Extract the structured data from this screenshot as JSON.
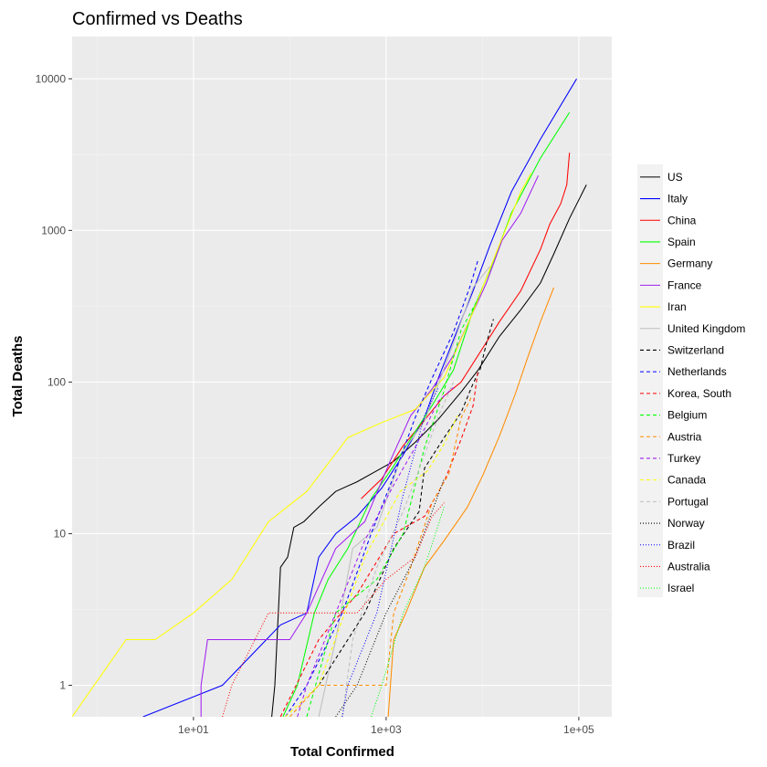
{
  "chart_data": {
    "type": "line",
    "title": "Confirmed vs Deaths",
    "xlabel": "Total Confirmed",
    "ylabel": "Total Deaths",
    "x_scale": "log10",
    "y_scale": "log10",
    "xlim": [
      0.55,
      220000
    ],
    "ylim": [
      0.62,
      19000
    ],
    "x_ticks": [
      10,
      1000,
      100000
    ],
    "x_tick_labels": [
      "1e+01",
      "1e+03",
      "1e+05"
    ],
    "y_ticks": [
      1,
      10,
      100,
      1000,
      10000
    ],
    "y_tick_labels": [
      "1",
      "10",
      "100",
      "1000",
      "10000"
    ],
    "background": "#EBEBEB",
    "grid": true,
    "legend_position": "right",
    "series": [
      {
        "name": "US",
        "color": "#000000",
        "dash": "solid",
        "points": [
          [
            65,
            0.62
          ],
          [
            70,
            1
          ],
          [
            80,
            6
          ],
          [
            95,
            7
          ],
          [
            110,
            11
          ],
          [
            140,
            12
          ],
          [
            200,
            15
          ],
          [
            300,
            19
          ],
          [
            500,
            22
          ],
          [
            800,
            26
          ],
          [
            1200,
            30
          ],
          [
            2000,
            40
          ],
          [
            3500,
            57
          ],
          [
            6000,
            86
          ],
          [
            9000,
            120
          ],
          [
            15000,
            200
          ],
          [
            25000,
            300
          ],
          [
            40000,
            450
          ],
          [
            55000,
            700
          ],
          [
            80000,
            1200
          ],
          [
            120000,
            2000
          ]
        ]
      },
      {
        "name": "Italy",
        "color": "#0000FF",
        "dash": "solid",
        "points": [
          [
            3,
            0.62
          ],
          [
            20,
            1
          ],
          [
            80,
            2.5
          ],
          [
            150,
            3
          ],
          [
            200,
            7
          ],
          [
            300,
            10
          ],
          [
            500,
            13
          ],
          [
            900,
            20
          ],
          [
            1500,
            33
          ],
          [
            2500,
            58
          ],
          [
            3500,
            107
          ],
          [
            5000,
            190
          ],
          [
            8000,
            400
          ],
          [
            12000,
            800
          ],
          [
            20000,
            1800
          ],
          [
            40000,
            4000
          ],
          [
            95000,
            10000
          ]
        ]
      },
      {
        "name": "China",
        "color": "#FF0000",
        "dash": "solid",
        "points": [
          [
            550,
            17
          ],
          [
            900,
            23
          ],
          [
            1500,
            38
          ],
          [
            2500,
            56
          ],
          [
            4000,
            81
          ],
          [
            6000,
            100
          ],
          [
            9000,
            150
          ],
          [
            15000,
            250
          ],
          [
            25000,
            400
          ],
          [
            40000,
            750
          ],
          [
            50000,
            1100
          ],
          [
            65000,
            1500
          ],
          [
            75000,
            2000
          ],
          [
            80000,
            3250
          ]
        ]
      },
      {
        "name": "Spain",
        "color": "#00FF00",
        "dash": "solid",
        "points": [
          [
            85,
            0.62
          ],
          [
            120,
            1
          ],
          [
            180,
            3
          ],
          [
            250,
            5
          ],
          [
            400,
            8
          ],
          [
            700,
            17
          ],
          [
            1200,
            28
          ],
          [
            2000,
            47
          ],
          [
            3000,
            70
          ],
          [
            5000,
            120
          ],
          [
            8000,
            300
          ],
          [
            12000,
            550
          ],
          [
            20000,
            1300
          ],
          [
            40000,
            3000
          ],
          [
            80000,
            6000
          ]
        ]
      },
      {
        "name": "Germany",
        "color": "#FF8C00",
        "dash": "solid",
        "points": [
          [
            1050,
            0.62
          ],
          [
            1200,
            2
          ],
          [
            1600,
            3
          ],
          [
            2500,
            6
          ],
          [
            4000,
            9
          ],
          [
            7000,
            15
          ],
          [
            10000,
            24
          ],
          [
            15000,
            44
          ],
          [
            22000,
            84
          ],
          [
            30000,
            150
          ],
          [
            40000,
            250
          ],
          [
            55000,
            420
          ]
        ]
      },
      {
        "name": "France",
        "color": "#A020F0",
        "dash": "solid",
        "points": [
          [
            12,
            0.62
          ],
          [
            12,
            1
          ],
          [
            14,
            2
          ],
          [
            50,
            2
          ],
          [
            100,
            2
          ],
          [
            150,
            3
          ],
          [
            300,
            8
          ],
          [
            600,
            12
          ],
          [
            1100,
            30
          ],
          [
            1800,
            60
          ],
          [
            3000,
            90
          ],
          [
            5000,
            150
          ],
          [
            7000,
            240
          ],
          [
            11000,
            450
          ],
          [
            16000,
            860
          ],
          [
            25000,
            1300
          ],
          [
            38000,
            2300
          ]
        ]
      },
      {
        "name": "Iran",
        "color": "#FFFF00",
        "dash": "solid",
        "points": [
          [
            0.55,
            0.62
          ],
          [
            2,
            2
          ],
          [
            4,
            2
          ],
          [
            10,
            3
          ],
          [
            25,
            5
          ],
          [
            60,
            12
          ],
          [
            150,
            19
          ],
          [
            400,
            43
          ],
          [
            900,
            54
          ],
          [
            2000,
            66
          ],
          [
            4000,
            107
          ],
          [
            8000,
            290
          ],
          [
            14000,
            720
          ],
          [
            25000,
            1800
          ],
          [
            32000,
            2380
          ]
        ]
      },
      {
        "name": "United Kingdom",
        "color": "#BEBEBE",
        "dash": "solid",
        "points": [
          [
            200,
            0.62
          ],
          [
            300,
            2
          ],
          [
            450,
            8
          ],
          [
            800,
            11
          ],
          [
            1500,
            35
          ],
          [
            2500,
            55
          ],
          [
            5000,
            180
          ],
          [
            8000,
            420
          ],
          [
            12000,
            580
          ]
        ]
      },
      {
        "name": "Switzerland",
        "color": "#000000",
        "dash": "dashed",
        "points": [
          [
            200,
            1
          ],
          [
            600,
            3
          ],
          [
            1200,
            8
          ],
          [
            2200,
            14
          ],
          [
            2500,
            27
          ],
          [
            4000,
            43
          ],
          [
            6000,
            63
          ],
          [
            8000,
            98
          ],
          [
            9500,
            122
          ],
          [
            11000,
            180
          ],
          [
            13000,
            260
          ]
        ]
      },
      {
        "name": "Netherlands",
        "color": "#0000FF",
        "dash": "dashed",
        "points": [
          [
            90,
            0.62
          ],
          [
            150,
            1
          ],
          [
            350,
            3
          ],
          [
            700,
            10
          ],
          [
            1200,
            24
          ],
          [
            2000,
            58
          ],
          [
            3000,
            106
          ],
          [
            5000,
            213
          ],
          [
            7500,
            434
          ],
          [
            9000,
            640
          ]
        ]
      },
      {
        "name": "Korea, South",
        "color": "#FF0000",
        "dash": "dashed",
        "points": [
          [
            80,
            0.62
          ],
          [
            200,
            2
          ],
          [
            500,
            4
          ],
          [
            1200,
            10
          ],
          [
            2500,
            13
          ],
          [
            4000,
            22
          ],
          [
            6000,
            42
          ],
          [
            8000,
            70
          ],
          [
            9000,
            120
          ]
        ]
      },
      {
        "name": "Belgium",
        "color": "#00FF00",
        "dash": "dashed",
        "points": [
          [
            150,
            0.62
          ],
          [
            300,
            3
          ],
          [
            800,
            5
          ],
          [
            1500,
            10
          ],
          [
            2500,
            37
          ],
          [
            4000,
            88
          ],
          [
            6000,
            220
          ],
          [
            9000,
            353
          ]
        ]
      },
      {
        "name": "Austria",
        "color": "#FF8C00",
        "dash": "dashed",
        "points": [
          [
            100,
            0.62
          ],
          [
            200,
            1
          ],
          [
            1000,
            1
          ],
          [
            1200,
            3
          ],
          [
            1800,
            6
          ],
          [
            3000,
            16
          ],
          [
            4500,
            25
          ],
          [
            6000,
            58
          ],
          [
            7700,
            80
          ]
        ]
      },
      {
        "name": "Turkey",
        "color": "#A020F0",
        "dash": "dashed",
        "points": [
          [
            120,
            0.62
          ],
          [
            150,
            1
          ],
          [
            300,
            3
          ],
          [
            600,
            9
          ],
          [
            1200,
            21
          ],
          [
            2000,
            37
          ],
          [
            3500,
            75
          ],
          [
            5000,
            92
          ]
        ]
      },
      {
        "name": "Canada",
        "color": "#FFFF00",
        "dash": "dashed",
        "points": [
          [
            90,
            0.62
          ],
          [
            200,
            1
          ],
          [
            600,
            7
          ],
          [
            1400,
            19
          ],
          [
            2700,
            26
          ],
          [
            4000,
            39
          ],
          [
            5500,
            60
          ]
        ]
      },
      {
        "name": "Portugal",
        "color": "#BEBEBE",
        "dash": "dashed",
        "points": [
          [
            350,
            0.62
          ],
          [
            450,
            2
          ],
          [
            800,
            6
          ],
          [
            1500,
            14
          ],
          [
            2500,
            33
          ],
          [
            3500,
            60
          ],
          [
            5000,
            100
          ]
        ]
      },
      {
        "name": "Norway",
        "color": "#000000",
        "dash": "dotted",
        "points": [
          [
            300,
            0.62
          ],
          [
            500,
            1
          ],
          [
            1000,
            3
          ],
          [
            2000,
            7
          ],
          [
            3000,
            14
          ],
          [
            4000,
            23
          ]
        ]
      },
      {
        "name": "Brazil",
        "color": "#0000FF",
        "dash": "dotted",
        "points": [
          [
            350,
            0.62
          ],
          [
            400,
            1
          ],
          [
            800,
            3
          ],
          [
            1500,
            18
          ],
          [
            2500,
            60
          ],
          [
            3500,
            92
          ]
        ]
      },
      {
        "name": "Australia",
        "color": "#FF0000",
        "dash": "dotted",
        "points": [
          [
            20,
            0.62
          ],
          [
            25,
            1
          ],
          [
            60,
            3
          ],
          [
            500,
            3
          ],
          [
            1000,
            5
          ],
          [
            2000,
            7
          ],
          [
            3000,
            13
          ],
          [
            4000,
            16
          ]
        ]
      },
      {
        "name": "Israel",
        "color": "#00FF00",
        "dash": "dotted",
        "points": [
          [
            700,
            0.62
          ],
          [
            900,
            1
          ],
          [
            1500,
            3
          ],
          [
            2500,
            6
          ],
          [
            4000,
            15
          ]
        ]
      }
    ]
  }
}
